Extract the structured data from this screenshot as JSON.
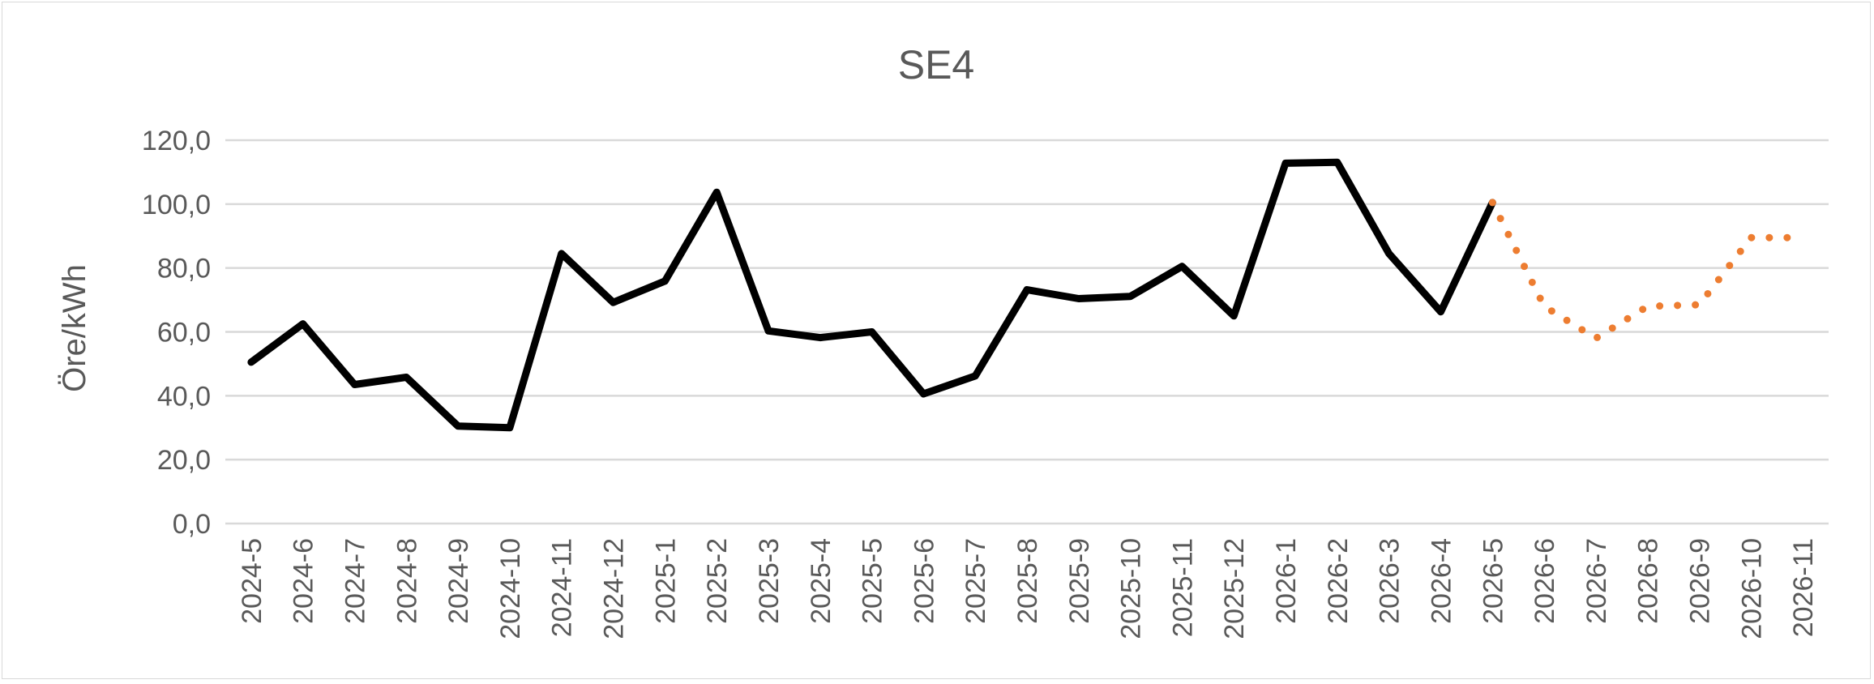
{
  "chart_data": {
    "type": "line",
    "title": "SE4",
    "xlabel": "",
    "ylabel": "Öre/kWh",
    "ylim": [
      0,
      120
    ],
    "yticks": [
      "0,0",
      "20,0",
      "40,0",
      "60,0",
      "80,0",
      "100,0",
      "120,0"
    ],
    "grid": true,
    "legend": "none",
    "categories": [
      "2024-5",
      "2024-6",
      "2024-7",
      "2024-8",
      "2024-9",
      "2024-10",
      "2024-11",
      "2024-12",
      "2025-1",
      "2025-2",
      "2025-3",
      "2025-4",
      "2025-5",
      "2025-6",
      "2025-7",
      "2025-8",
      "2025-9",
      "2025-10",
      "2025-11",
      "2025-12",
      "2026-1",
      "2026-2",
      "2026-3",
      "2026-4",
      "2026-5",
      "2026-6",
      "2026-7",
      "2026-8",
      "2026-9",
      "2026-10",
      "2026-11"
    ],
    "series": [
      {
        "style": "solid",
        "color": "#000000",
        "values": [
          50.5,
          62.5,
          43.5,
          45.8,
          30.5,
          30.0,
          84.5,
          69.2,
          75.9,
          103.7,
          60.3,
          58.2,
          60.0,
          40.6,
          46.2,
          73.2,
          70.4,
          71.1,
          80.5,
          65.0,
          112.8,
          113.1,
          84.5,
          66.3,
          100.5,
          null,
          null,
          null,
          null,
          null,
          null
        ]
      },
      {
        "style": "dotted",
        "color": "#ED7D31",
        "values": [
          null,
          null,
          null,
          null,
          null,
          null,
          null,
          null,
          null,
          null,
          null,
          null,
          null,
          null,
          null,
          null,
          null,
          null,
          null,
          null,
          null,
          null,
          null,
          null,
          100.5,
          68.0,
          58.0,
          68.0,
          68.5,
          89.5,
          89.5
        ]
      }
    ]
  }
}
